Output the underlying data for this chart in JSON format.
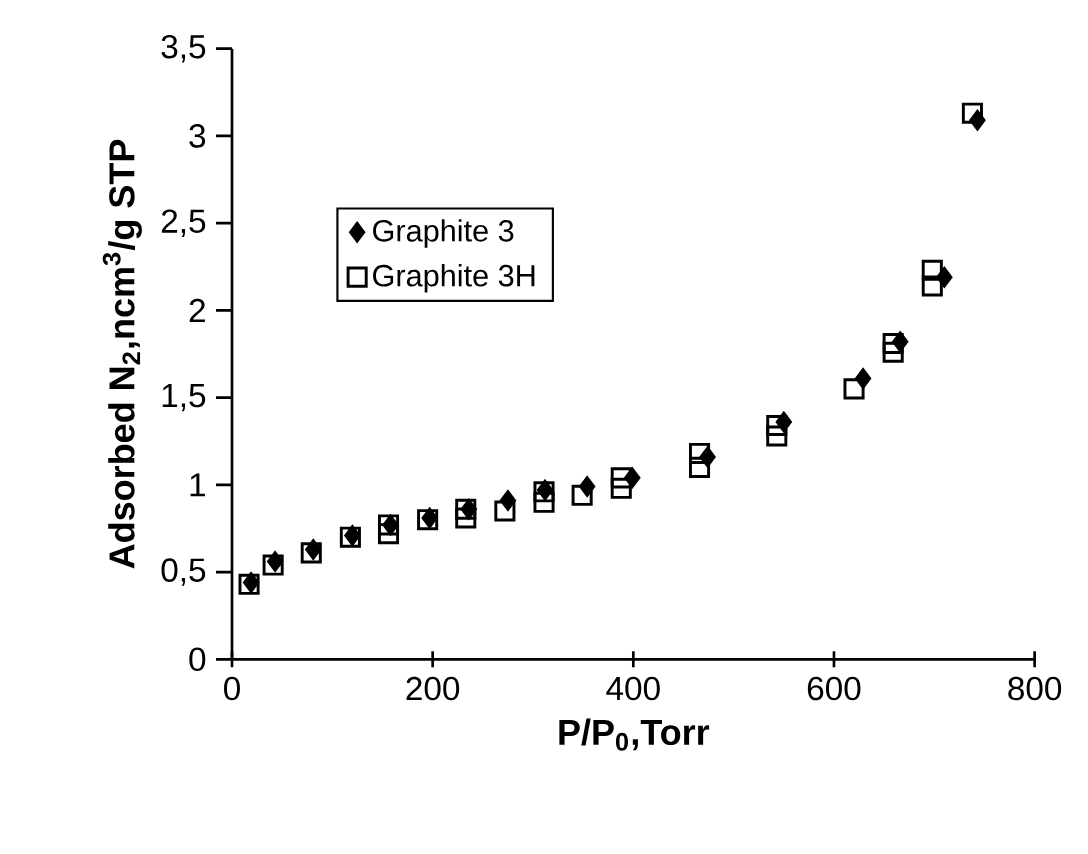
{
  "chart_data": {
    "type": "scatter",
    "xlabel": "**P/P$_{0}$,Torr**",
    "ylabel": "**Adsorbed N$_{2}$,ncm$^{3}$/g STP**",
    "xlim": [
      0,
      800
    ],
    "xticks": [
      0,
      200,
      400,
      600,
      800
    ],
    "ylim": [
      0,
      3.5
    ],
    "yticks": [
      {
        "value": 0,
        "label": "0"
      },
      {
        "value": 0.5,
        "label": "0,5"
      },
      {
        "value": 1,
        "label": "1"
      },
      {
        "value": 1.5,
        "label": "1,5"
      },
      {
        "value": 2,
        "label": "2"
      },
      {
        "value": 2.5,
        "label": "2,5"
      },
      {
        "value": 3,
        "label": "3"
      },
      {
        "value": 3.5,
        "label": "3,5"
      }
    ],
    "legend": "top left",
    "grid": false,
    "series": [
      {
        "name": "Graphite 3",
        "color": "#000000",
        "marker": "diamond",
        "x": [
          19,
          43,
          81,
          120,
          158,
          197,
          236,
          275,
          312,
          354,
          399,
          474,
          550,
          629,
          666,
          710,
          743
        ],
        "values": [
          0.44,
          0.56,
          0.63,
          0.71,
          0.77,
          0.81,
          0.86,
          0.91,
          0.97,
          0.99,
          1.04,
          1.16,
          1.36,
          1.61,
          1.82,
          2.19,
          3.09
        ]
      },
      {
        "name": "Graphite 3H",
        "color": "#000000",
        "marker": "square",
        "x": [
          17,
          41,
          79,
          118,
          156,
          156,
          195,
          233,
          233,
          272,
          311,
          311,
          349,
          388,
          388,
          466,
          466,
          543,
          543,
          620,
          659,
          659,
          698,
          698,
          738
        ],
        "values": [
          0.43,
          0.54,
          0.61,
          0.7,
          0.72,
          0.77,
          0.8,
          0.81,
          0.86,
          0.85,
          0.9,
          0.96,
          0.94,
          0.98,
          1.04,
          1.1,
          1.18,
          1.28,
          1.34,
          1.55,
          1.76,
          1.81,
          2.14,
          2.23,
          3.13
        ]
      }
    ]
  }
}
